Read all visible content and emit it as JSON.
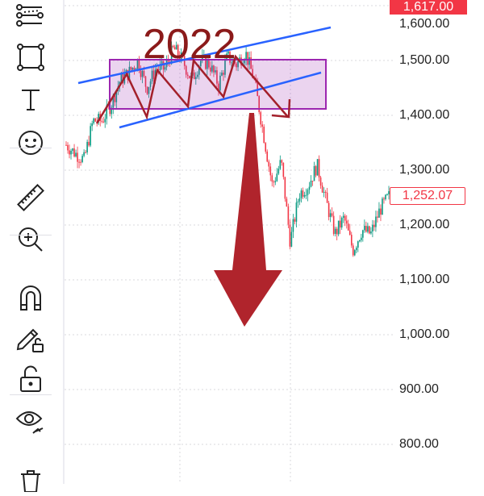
{
  "toolbar": {
    "tools": [
      {
        "name": "trend-lines-icon"
      },
      {
        "name": "rectangle-shapes-icon"
      },
      {
        "name": "text-icon"
      },
      {
        "name": "emoji-icon"
      },
      {
        "name": "ruler-icon"
      },
      {
        "name": "zoom-in-icon"
      },
      {
        "name": "magnet-icon"
      },
      {
        "name": "pencil-lock-icon"
      },
      {
        "name": "lock-icon"
      },
      {
        "name": "eye-icon"
      },
      {
        "name": "trash-icon"
      }
    ]
  },
  "price_axis": {
    "labels": [
      "1,600.00",
      "1,500.00",
      "1,400.00",
      "1,300.00",
      "1,200.00",
      "1,100.00",
      "1,000.00",
      "900.00",
      "800.00"
    ],
    "top_label": "1,617.00",
    "last_price": "1,252.07",
    "last_price_color": "#f23645"
  },
  "annotations": {
    "year_text": "2022",
    "year_color": "#8b1a1a",
    "rectangle_color": "#9c27b0",
    "channel_color": "#2962ff",
    "arrow_color": "#b0242c"
  },
  "chart_data": {
    "type": "candlestick",
    "ylim": [
      762,
      1610
    ],
    "yticks": [
      1600,
      1500,
      1400,
      1300,
      1200,
      1100,
      1000,
      900,
      800
    ],
    "up_color": "#089981",
    "down_color": "#f23645",
    "grid": true,
    "approx_close_path": [
      1346,
      1331,
      1319,
      1390,
      1390,
      1419,
      1463,
      1478,
      1500,
      1449,
      1485,
      1485,
      1522,
      1500,
      1463,
      1500,
      1493,
      1456,
      1507,
      1493,
      1515,
      1463,
      1368,
      1272,
      1316,
      1169,
      1257,
      1272,
      1309,
      1243,
      1184,
      1213,
      1154,
      1191,
      1184,
      1228,
      1252
    ]
  }
}
